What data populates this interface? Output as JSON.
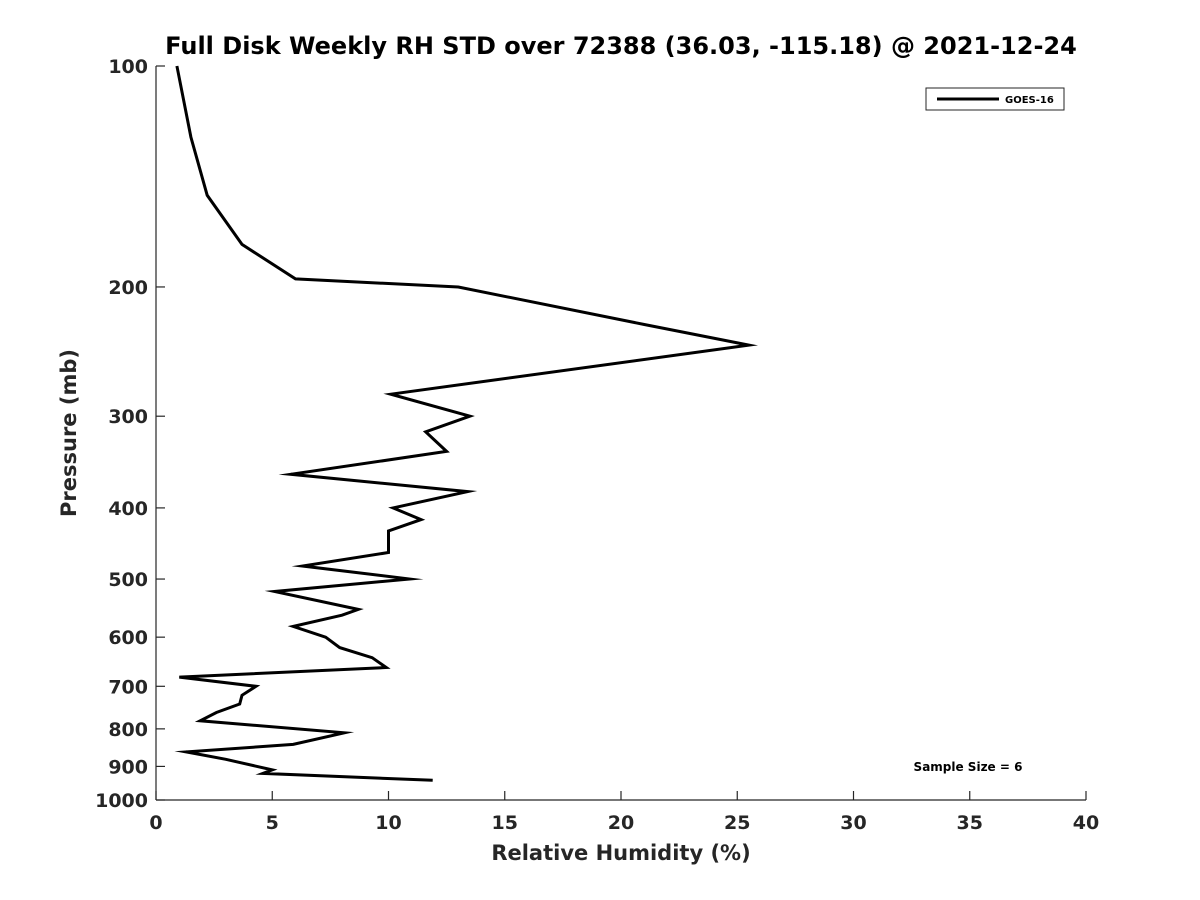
{
  "chart_data": {
    "type": "line",
    "title": "Full Disk Weekly RH STD over 72388 (36.03, -115.18) @ 2021-12-24",
    "xlabel": "Relative Humidity (%)",
    "ylabel": "Pressure (mb)",
    "xlim": [
      0,
      40
    ],
    "ylim": [
      1000,
      100
    ],
    "yscale": "log",
    "xticks": [
      0,
      5,
      10,
      15,
      20,
      25,
      30,
      35,
      40
    ],
    "yticks": [
      100,
      200,
      300,
      400,
      500,
      600,
      700,
      800,
      900,
      1000
    ],
    "grid": false,
    "legend": {
      "placement": "top-right",
      "entries": [
        "GOES-16"
      ]
    },
    "annotation": "Sample Size = 6",
    "series": [
      {
        "name": "GOES-16",
        "color": "#000000",
        "points": [
          [
            0.9,
            100
          ],
          [
            1.5,
            125
          ],
          [
            2.2,
            150
          ],
          [
            3.7,
            175
          ],
          [
            6.0,
            195
          ],
          [
            13.0,
            200
          ],
          [
            21.0,
            225
          ],
          [
            25.5,
            240
          ],
          [
            10.1,
            280
          ],
          [
            13.5,
            300
          ],
          [
            11.6,
            315
          ],
          [
            12.5,
            335
          ],
          [
            5.8,
            360
          ],
          [
            13.4,
            380
          ],
          [
            10.2,
            400
          ],
          [
            11.4,
            415
          ],
          [
            10.0,
            430
          ],
          [
            10.0,
            460
          ],
          [
            6.3,
            480
          ],
          [
            10.9,
            500
          ],
          [
            5.1,
            520
          ],
          [
            8.7,
            550
          ],
          [
            8.0,
            560
          ],
          [
            5.9,
            580
          ],
          [
            7.3,
            600
          ],
          [
            7.9,
            620
          ],
          [
            9.3,
            640
          ],
          [
            9.9,
            660
          ],
          [
            1.0,
            680
          ],
          [
            4.3,
            700
          ],
          [
            3.7,
            720
          ],
          [
            3.6,
            740
          ],
          [
            2.6,
            760
          ],
          [
            1.9,
            780
          ],
          [
            8.1,
            810
          ],
          [
            5.9,
            840
          ],
          [
            1.3,
            860
          ],
          [
            3.0,
            880
          ],
          [
            5.0,
            910
          ],
          [
            4.6,
            920
          ],
          [
            11.9,
            940
          ]
        ]
      }
    ]
  }
}
